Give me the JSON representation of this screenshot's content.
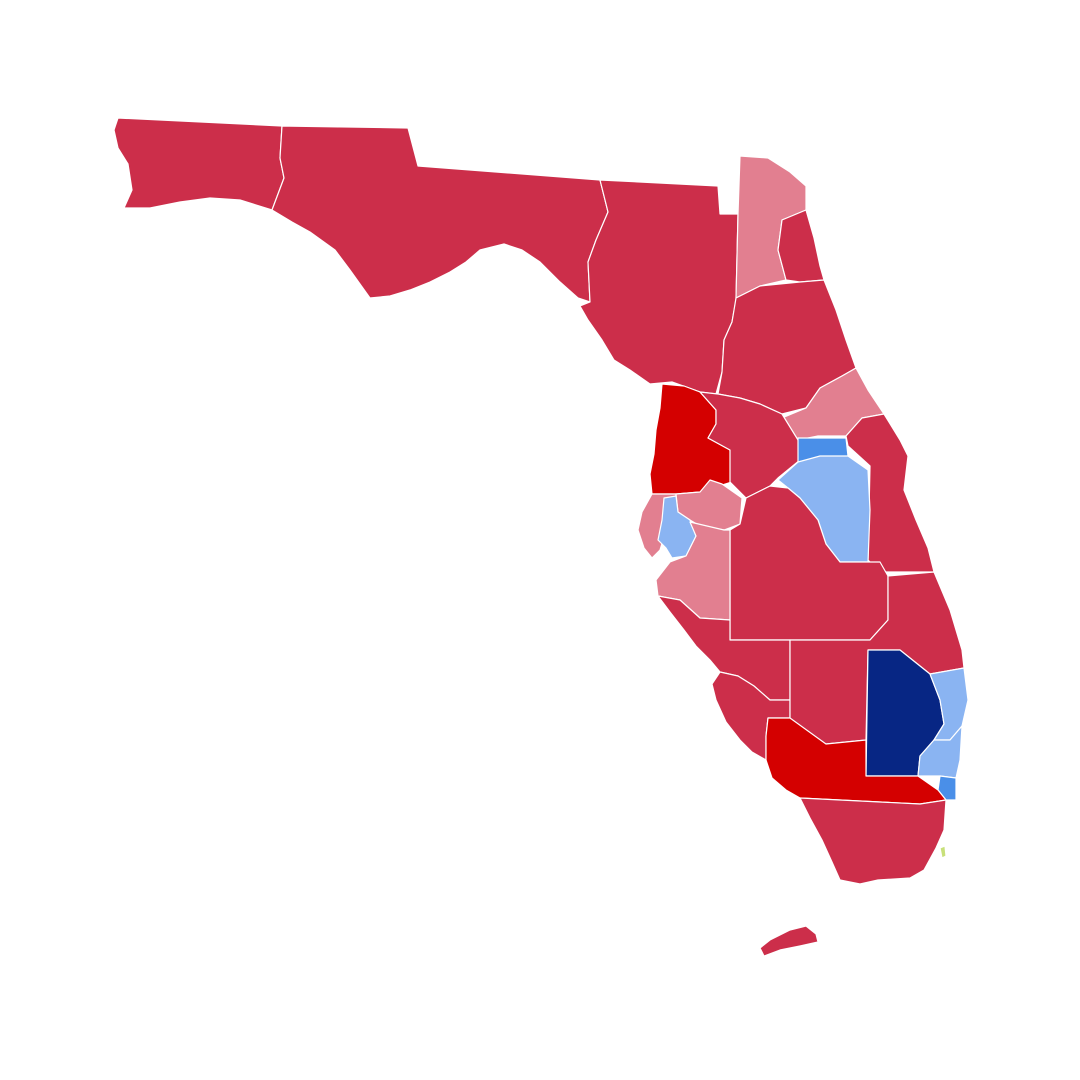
{
  "map": {
    "subject": "florida-district-results",
    "background_color": "#ffffff",
    "border_color": "#ffffff",
    "colors": {
      "rep_solid": "#cc2e4a",
      "rep_strong": "#d40000",
      "rep_lean": "#e27f90",
      "dem_lean": "#8ab4f2",
      "dem_mid": "#4a8fe8",
      "dem_strong": "#072684",
      "other": "#c8e07a"
    },
    "regions": [
      {
        "id": "r-west-panhandle",
        "category": "rep_solid"
      },
      {
        "id": "r-north-central",
        "category": "rep_solid"
      },
      {
        "id": "r-north-east-inland",
        "category": "rep_solid"
      },
      {
        "id": "r-jacksonville-west",
        "category": "rep_lean"
      },
      {
        "id": "r-jacksonville-coast",
        "category": "rep_solid"
      },
      {
        "id": "r-northeast-inland-south",
        "category": "rep_solid"
      },
      {
        "id": "r-volusia",
        "category": "rep_lean"
      },
      {
        "id": "r-brevard",
        "category": "rep_solid"
      },
      {
        "id": "r-hernando-citrus",
        "category": "rep_strong"
      },
      {
        "id": "r-lake-sumter",
        "category": "rep_solid"
      },
      {
        "id": "r-pasco",
        "category": "rep_lean"
      },
      {
        "id": "r-pinellas",
        "category": "rep_lean"
      },
      {
        "id": "r-tampa",
        "category": "dem_lean"
      },
      {
        "id": "r-orlando-north",
        "category": "dem_mid"
      },
      {
        "id": "r-orlando",
        "category": "dem_lean"
      },
      {
        "id": "r-polk",
        "category": "rep_solid"
      },
      {
        "id": "r-manatee",
        "category": "rep_lean"
      },
      {
        "id": "r-sarasota-charlotte",
        "category": "rep_solid"
      },
      {
        "id": "r-lee",
        "category": "rep_solid"
      },
      {
        "id": "r-heartland",
        "category": "rep_solid"
      },
      {
        "id": "r-treasure-coast",
        "category": "rep_solid"
      },
      {
        "id": "r-palm-beach-west",
        "category": "dem_strong"
      },
      {
        "id": "r-palm-beach-coast",
        "category": "dem_lean"
      },
      {
        "id": "r-broward-coast",
        "category": "dem_lean"
      },
      {
        "id": "r-broward-south",
        "category": "dem_mid"
      },
      {
        "id": "r-collier-hendry",
        "category": "rep_strong"
      },
      {
        "id": "r-miami-dade-south",
        "category": "rep_solid"
      },
      {
        "id": "r-keys",
        "category": "rep_solid"
      },
      {
        "id": "r-miami-islet",
        "category": "other"
      }
    ]
  }
}
